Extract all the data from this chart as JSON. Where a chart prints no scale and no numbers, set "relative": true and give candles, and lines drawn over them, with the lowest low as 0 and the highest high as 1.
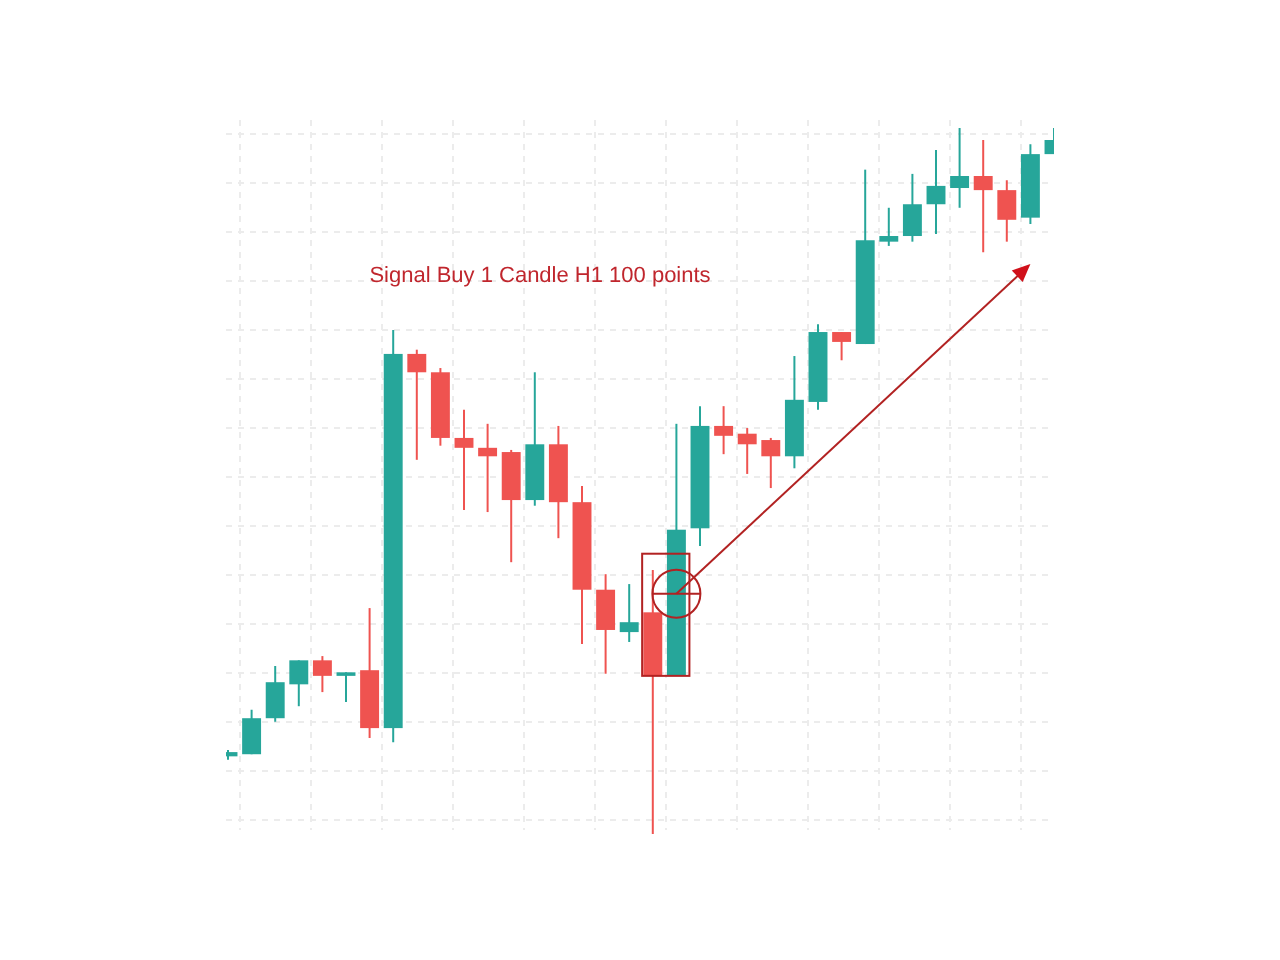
{
  "chart_data": {
    "type": "candlestick",
    "relative": true,
    "grid": true,
    "annotations": [
      "Signal Buy 1 Candle H1 100 points"
    ],
    "categories": [
      null,
      null,
      null,
      null,
      null,
      null,
      null,
      null,
      null,
      null,
      null,
      null,
      null,
      null,
      null,
      null,
      null,
      null,
      null,
      null,
      null,
      null,
      null,
      null,
      null,
      null,
      null,
      null,
      null,
      null,
      null,
      null,
      null,
      null,
      null,
      null
    ],
    "ohlc": [
      [
        0.11,
        0.119,
        0.105,
        0.116
      ],
      [
        0.113,
        0.176,
        0.113,
        0.164
      ],
      [
        0.164,
        0.238,
        0.159,
        0.215
      ],
      [
        0.212,
        0.246,
        0.181,
        0.246
      ],
      [
        0.246,
        0.252,
        0.201,
        0.224
      ],
      [
        0.224,
        0.229,
        0.187,
        0.229
      ],
      [
        0.232,
        0.32,
        0.136,
        0.15
      ],
      [
        0.15,
        0.714,
        0.13,
        0.68
      ],
      [
        0.68,
        0.686,
        0.53,
        0.654
      ],
      [
        0.654,
        0.66,
        0.55,
        0.561
      ],
      [
        0.561,
        0.601,
        0.459,
        0.547
      ],
      [
        0.547,
        0.581,
        0.456,
        0.535
      ],
      [
        0.541,
        0.544,
        0.385,
        0.473
      ],
      [
        0.473,
        0.654,
        0.465,
        0.552
      ],
      [
        0.552,
        0.578,
        0.419,
        0.47
      ],
      [
        0.47,
        0.493,
        0.269,
        0.346
      ],
      [
        0.346,
        0.368,
        0.227,
        0.289
      ],
      [
        0.286,
        0.354,
        0.272,
        0.3
      ],
      [
        0.314,
        0.374,
        0,
        0.224
      ],
      [
        0.224,
        0.581,
        0.224,
        0.431
      ],
      [
        0.433,
        0.606,
        0.408,
        0.578
      ],
      [
        0.578,
        0.606,
        0.538,
        0.564
      ],
      [
        0.567,
        0.575,
        0.51,
        0.552
      ],
      [
        0.558,
        0.561,
        0.49,
        0.535
      ],
      [
        0.535,
        0.677,
        0.518,
        0.615
      ],
      [
        0.612,
        0.722,
        0.601,
        0.711
      ],
      [
        0.711,
        0.711,
        0.671,
        0.697
      ],
      [
        0.694,
        0.941,
        0.694,
        0.841
      ],
      [
        0.839,
        0.887,
        0.833,
        0.847
      ],
      [
        0.847,
        0.935,
        0.839,
        0.892
      ],
      [
        0.892,
        0.969,
        0.85,
        0.918
      ],
      [
        0.915,
        1,
        0.887,
        0.932
      ],
      [
        0.932,
        0.983,
        0.824,
        0.912
      ],
      [
        0.912,
        0.926,
        0.839,
        0.87
      ],
      [
        0.873,
        0.977,
        0.864,
        0.963
      ],
      [
        0.963,
        1,
        0.963,
        0.983
      ]
    ],
    "colors": [
      "#26a69a",
      "#26a69a",
      "#26a69a",
      "#26a69a",
      "#ef5350",
      "#26a69a",
      "#ef5350",
      "#26a69a",
      "#ef5350",
      "#ef5350",
      "#ef5350",
      "#ef5350",
      "#ef5350",
      "#26a69a",
      "#ef5350",
      "#ef5350",
      "#ef5350",
      "#26a69a",
      "#ef5350",
      "#26a69a",
      "#26a69a",
      "#ef5350",
      "#ef5350",
      "#ef5350",
      "#26a69a",
      "#26a69a",
      "#ef5350",
      "#26a69a",
      "#26a69a",
      "#26a69a",
      "#26a69a",
      "#26a69a",
      "#ef5350",
      "#ef5350",
      "#26a69a",
      "#26a69a"
    ]
  }
}
